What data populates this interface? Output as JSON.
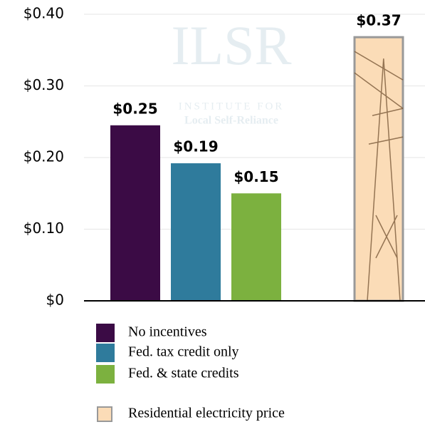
{
  "chart_data": {
    "type": "bar",
    "categories": [
      "No incentives",
      "Fed. tax credit only",
      "Fed. & state credits",
      "Residential electricity price"
    ],
    "values": [
      0.245,
      0.192,
      0.15,
      0.368
    ],
    "value_labels": [
      "$0.25",
      "$0.19",
      "$0.15",
      "$0.37"
    ],
    "colors": [
      "#3b0b45",
      "#2f7b9c",
      "#7cb13f",
      "#fbdcb7"
    ],
    "ylim": [
      0,
      0.4
    ],
    "yticks": [
      {
        "value": 0,
        "label": "$0"
      },
      {
        "value": 0.1,
        "label": "$0.10"
      },
      {
        "value": 0.2,
        "label": "$0.20"
      },
      {
        "value": 0.3,
        "label": "$0.30"
      },
      {
        "value": 0.4,
        "label": "$0.40"
      }
    ],
    "grid": true,
    "annotations": [
      "ILSR",
      "INSTITUTE FOR",
      "Local Self-Reliance"
    ]
  }
}
